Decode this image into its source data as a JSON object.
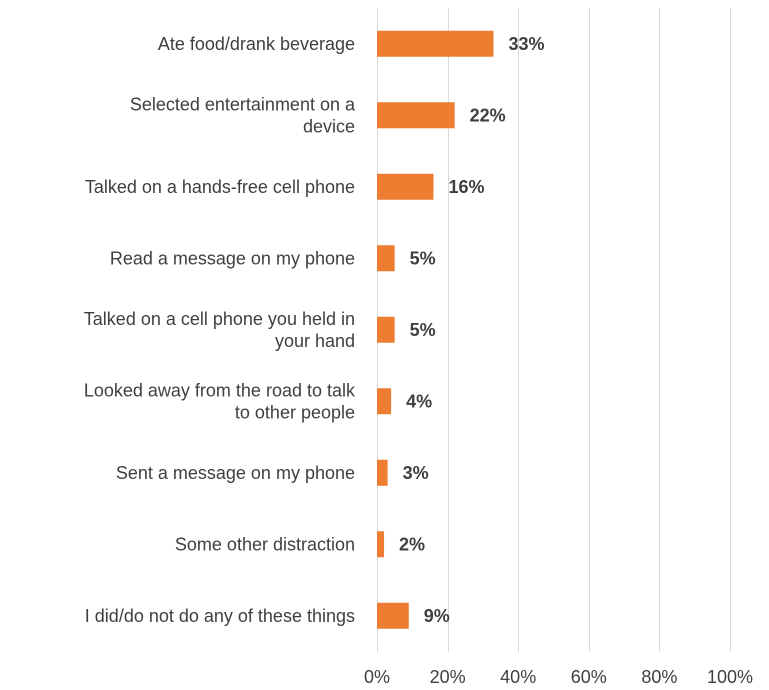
{
  "chart_data": {
    "type": "bar",
    "orientation": "horizontal",
    "categories": [
      [
        "Ate food/drank beverage"
      ],
      [
        "Selected entertainment on a",
        "device"
      ],
      [
        "Talked on a hands-free cell phone"
      ],
      [
        "Read a message on my phone"
      ],
      [
        "Talked on a cell phone you held in",
        "your hand"
      ],
      [
        "Looked away from the road to talk",
        "to other people"
      ],
      [
        "Sent a message on my phone"
      ],
      [
        "Some other distraction"
      ],
      [
        "I did/do not do any of these things"
      ]
    ],
    "values": [
      33,
      22,
      16,
      5,
      5,
      4,
      3,
      2,
      9
    ],
    "value_labels": [
      "33%",
      "22%",
      "16%",
      "5%",
      "5%",
      "4%",
      "3%",
      "2%",
      "9%"
    ],
    "x_ticks": [
      "0%",
      "20%",
      "40%",
      "60%",
      "80%",
      "100%"
    ],
    "xlim": [
      0,
      100
    ],
    "grid": true,
    "colors": {
      "bar": "#ED7D31",
      "grid": "#D9D9D9",
      "text": "#3F3F3F"
    }
  }
}
